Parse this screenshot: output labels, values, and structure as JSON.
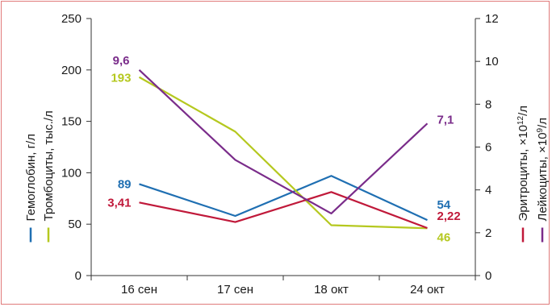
{
  "chart_data": {
    "type": "line",
    "categories": [
      "16 сен",
      "17 сен",
      "18 окт",
      "24 окт"
    ],
    "y_left": {
      "ylim": [
        0,
        250
      ],
      "ticks": [
        "0",
        "50",
        "100",
        "150",
        "200",
        "250"
      ]
    },
    "y_right": {
      "ylim": [
        0,
        12
      ],
      "ticks": [
        "0",
        "2",
        "4",
        "6",
        "8",
        "10",
        "12"
      ]
    },
    "left_axis_titles": [
      {
        "text": "Гемоглобин, г/л",
        "color": "#1f6fb2"
      },
      {
        "text": "Тромбоциты,  тыс./л",
        "color": "#b5c81f"
      }
    ],
    "right_axis_titles": [
      {
        "text": "Эритроциты, ×10",
        "sup": "12",
        "unit": "/л",
        "color": "#c0193a"
      },
      {
        "text": "Лейкоциты, ×10",
        "sup": "9",
        "unit": "/л",
        "color": "#7a2c8a"
      }
    ],
    "series": [
      {
        "name": "Гемоглобин, г/л",
        "axis": "left",
        "color": "#1f6fb2",
        "values": [
          89,
          58,
          97,
          54
        ],
        "labels": [
          {
            "index": 0,
            "text": "89"
          },
          {
            "index": 3,
            "text": "54"
          }
        ]
      },
      {
        "name": "Тромбоциты,  тыс./л",
        "axis": "left",
        "color": "#b5c81f",
        "values": [
          193,
          140,
          49,
          46
        ],
        "labels": [
          {
            "index": 0,
            "text": "193"
          },
          {
            "index": 3,
            "text": "46"
          }
        ]
      },
      {
        "name": "Эритроциты, ×10¹²/л",
        "axis": "right",
        "color": "#c0193a",
        "values": [
          3.41,
          2.5,
          3.9,
          2.22
        ],
        "labels": [
          {
            "index": 0,
            "text": "3,41"
          },
          {
            "index": 3,
            "text": "2,22"
          }
        ]
      },
      {
        "name": "Лейкоциты, ×10⁹/л",
        "axis": "right",
        "color": "#7a2c8a",
        "values": [
          9.6,
          5.4,
          2.9,
          7.1
        ],
        "labels": [
          {
            "index": 0,
            "text": "9,6"
          },
          {
            "index": 3,
            "text": "7,1"
          }
        ]
      }
    ]
  }
}
